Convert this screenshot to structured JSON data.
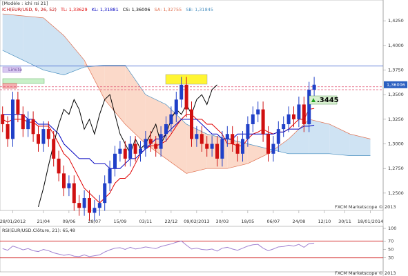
{
  "header": {
    "model": "[Modèle : ichi rsi 21]",
    "limit_label": "Limite"
  },
  "chart_data": [
    {
      "type": "candlestick",
      "legend": [
        {
          "text": "ICH(EUR/USD, 9, 26, 52)",
          "color": "#c00000"
        },
        {
          "text": "TL: 1,33629",
          "color": "#e00000"
        },
        {
          "text": "KL: 1,31881",
          "color": "#0000c0"
        },
        {
          "text": "CS: 1,36006",
          "color": "#000000"
        },
        {
          "text": "SA: 1,32755",
          "color": "#e07050"
        },
        {
          "text": "SB: 1,31845",
          "color": "#4a90c0"
        }
      ],
      "watermark": "FXCM Marketscope © 2013",
      "xlim": [
        -0.5,
        74.5
      ],
      "xticks": [
        {
          "value": 2,
          "label": "28/01/2012"
        },
        {
          "value": 8,
          "label": "21/04"
        },
        {
          "value": 13,
          "label": "09/06"
        },
        {
          "value": 18,
          "label": "28/07"
        },
        {
          "value": 23,
          "label": "15/09"
        },
        {
          "value": 28,
          "label": "03/11"
        },
        {
          "value": 33,
          "label": "22/12"
        },
        {
          "value": 38,
          "label": "09/02/2013"
        },
        {
          "value": 43,
          "label": "30/03"
        },
        {
          "value": 48,
          "label": "18/05"
        },
        {
          "value": 53,
          "label": "06/07"
        },
        {
          "value": 58,
          "label": "24/08"
        },
        {
          "value": 63,
          "label": "12/10"
        },
        {
          "value": 67,
          "label": "30/11"
        },
        {
          "value": 72,
          "label": "18/01/2014"
        }
      ],
      "ylim": [
        1.2324,
        1.4461
      ],
      "yticks": [
        {
          "value": 1.425,
          "label": "1,4250"
        },
        {
          "value": 1.4,
          "label": "1,4000"
        },
        {
          "value": 1.375,
          "label": "1,3750"
        },
        {
          "value": 1.35,
          "label": "1,3500"
        },
        {
          "value": 1.325,
          "label": "1,3250"
        },
        {
          "value": 1.3,
          "label": "1,3000"
        },
        {
          "value": 1.275,
          "label": "1,2750"
        },
        {
          "value": 1.25,
          "label": "1,2500"
        }
      ],
      "up_color": "#2040c8",
      "down_color": "#d01010",
      "candles": [
        [
          1.33,
          1.338,
          1.312,
          1.32
        ],
        [
          1.32,
          1.328,
          1.297,
          1.305
        ],
        [
          1.305,
          1.353,
          1.297,
          1.345
        ],
        [
          1.345,
          1.353,
          1.322,
          1.33
        ],
        [
          1.33,
          1.338,
          1.307,
          1.315
        ],
        [
          1.315,
          1.333,
          1.307,
          1.325
        ],
        [
          1.325,
          1.333,
          1.302,
          1.31
        ],
        [
          1.31,
          1.318,
          1.292,
          1.3
        ],
        [
          1.3,
          1.323,
          1.292,
          1.315
        ],
        [
          1.315,
          1.323,
          1.297,
          1.305
        ],
        [
          1.305,
          1.313,
          1.277,
          1.285
        ],
        [
          1.285,
          1.293,
          1.262,
          1.27
        ],
        [
          1.27,
          1.278,
          1.247,
          1.255
        ],
        [
          1.255,
          1.268,
          1.247,
          1.26
        ],
        [
          1.26,
          1.268,
          1.232,
          1.24
        ],
        [
          1.24,
          1.248,
          1.227,
          1.235
        ],
        [
          1.235,
          1.253,
          1.227,
          1.245
        ],
        [
          1.245,
          1.253,
          1.222,
          1.23
        ],
        [
          1.23,
          1.243,
          1.222,
          1.235
        ],
        [
          1.235,
          1.248,
          1.227,
          1.24
        ],
        [
          1.24,
          1.268,
          1.232,
          1.26
        ],
        [
          1.26,
          1.283,
          1.252,
          1.275
        ],
        [
          1.275,
          1.298,
          1.267,
          1.29
        ],
        [
          1.29,
          1.303,
          1.282,
          1.295
        ],
        [
          1.295,
          1.303,
          1.277,
          1.285
        ],
        [
          1.285,
          1.308,
          1.277,
          1.3
        ],
        [
          1.3,
          1.308,
          1.282,
          1.29
        ],
        [
          1.29,
          1.303,
          1.282,
          1.295
        ],
        [
          1.295,
          1.313,
          1.287,
          1.305
        ],
        [
          1.305,
          1.313,
          1.292,
          1.3
        ],
        [
          1.3,
          1.308,
          1.287,
          1.295
        ],
        [
          1.295,
          1.318,
          1.287,
          1.31
        ],
        [
          1.31,
          1.328,
          1.302,
          1.32
        ],
        [
          1.32,
          1.338,
          1.312,
          1.33
        ],
        [
          1.33,
          1.353,
          1.322,
          1.345
        ],
        [
          1.345,
          1.368,
          1.337,
          1.36
        ],
        [
          1.36,
          1.368,
          1.327,
          1.335
        ],
        [
          1.335,
          1.343,
          1.297,
          1.305
        ],
        [
          1.305,
          1.318,
          1.297,
          1.31
        ],
        [
          1.31,
          1.318,
          1.292,
          1.3
        ],
        [
          1.3,
          1.308,
          1.287,
          1.295
        ],
        [
          1.295,
          1.308,
          1.287,
          1.3
        ],
        [
          1.3,
          1.308,
          1.277,
          1.285
        ],
        [
          1.285,
          1.313,
          1.277,
          1.305
        ],
        [
          1.305,
          1.318,
          1.297,
          1.31
        ],
        [
          1.31,
          1.318,
          1.292,
          1.3
        ],
        [
          1.3,
          1.308,
          1.282,
          1.29
        ],
        [
          1.29,
          1.313,
          1.282,
          1.305
        ],
        [
          1.305,
          1.328,
          1.297,
          1.32
        ],
        [
          1.32,
          1.338,
          1.312,
          1.33
        ],
        [
          1.33,
          1.343,
          1.322,
          1.335
        ],
        [
          1.335,
          1.343,
          1.302,
          1.31
        ],
        [
          1.31,
          1.318,
          1.282,
          1.29
        ],
        [
          1.29,
          1.308,
          1.282,
          1.3
        ],
        [
          1.3,
          1.323,
          1.292,
          1.315
        ],
        [
          1.315,
          1.328,
          1.307,
          1.32
        ],
        [
          1.32,
          1.338,
          1.312,
          1.33
        ],
        [
          1.33,
          1.338,
          1.317,
          1.325
        ],
        [
          1.325,
          1.348,
          1.317,
          1.34
        ],
        [
          1.34,
          1.348,
          1.312,
          1.32
        ],
        [
          1.32,
          1.363,
          1.312,
          1.355
        ],
        [
          1.355,
          1.368,
          1.347,
          1.3601
        ]
      ],
      "lines": [
        {
          "color": "#e00000",
          "values": [
            1.325,
            1.322,
            1.325,
            1.325,
            1.325,
            1.322,
            1.322,
            1.318,
            1.318,
            1.318,
            1.31,
            1.3,
            1.29,
            1.285,
            1.275,
            1.265,
            1.255,
            1.25,
            1.245,
            1.24,
            1.245,
            1.25,
            1.26,
            1.265,
            1.265,
            1.27,
            1.28,
            1.29,
            1.295,
            1.298,
            1.298,
            1.3,
            1.303,
            1.31,
            1.318,
            1.325,
            1.33,
            1.33,
            1.325,
            1.325,
            1.32,
            1.32,
            1.315,
            1.31,
            1.3,
            1.3,
            1.298,
            1.298,
            1.305,
            1.31,
            1.312,
            1.315,
            1.312,
            1.31,
            1.312,
            1.312,
            1.315,
            1.32,
            1.325,
            1.325,
            1.335,
            1.336
          ]
        },
        {
          "color": "#0000c0",
          "values": [
            1.33,
            1.33,
            1.33,
            1.33,
            1.33,
            1.325,
            1.325,
            1.32,
            1.32,
            1.32,
            1.315,
            1.31,
            1.3,
            1.295,
            1.29,
            1.285,
            1.285,
            1.285,
            1.28,
            1.28,
            1.28,
            1.275,
            1.275,
            1.275,
            1.28,
            1.285,
            1.285,
            1.29,
            1.295,
            1.3,
            1.305,
            1.305,
            1.31,
            1.315,
            1.32,
            1.325,
            1.325,
            1.325,
            1.325,
            1.32,
            1.315,
            1.31,
            1.31,
            1.305,
            1.305,
            1.305,
            1.31,
            1.31,
            1.31,
            1.31,
            1.31,
            1.31,
            1.31,
            1.31,
            1.312,
            1.312,
            1.315,
            1.315,
            1.315,
            1.318,
            1.318,
            1.319
          ]
        }
      ],
      "chikou": {
        "color": "#000000",
        "x": [
          7,
          8,
          9,
          10,
          11,
          12,
          13,
          14,
          15,
          16,
          17,
          18,
          19,
          20,
          21,
          22,
          23,
          24,
          25,
          26,
          27,
          28,
          29,
          30,
          31,
          32,
          33,
          34,
          35,
          36,
          37,
          38,
          39,
          40,
          41,
          42
        ],
        "values": [
          1.236,
          1.255,
          1.278,
          1.3,
          1.32,
          1.335,
          1.33,
          1.345,
          1.335,
          1.315,
          1.325,
          1.31,
          1.33,
          1.345,
          1.35,
          1.33,
          1.31,
          1.3,
          1.29,
          1.305,
          1.295,
          1.3,
          1.31,
          1.32,
          1.3,
          1.31,
          1.325,
          1.335,
          1.33,
          1.34,
          1.33,
          1.345,
          1.35,
          1.34,
          1.355,
          1.36
        ]
      },
      "cloud": {
        "bull_color": "#cfe3f3",
        "bear_color": "#fbd9c9",
        "edge_a": "#e07050",
        "edge_b": "#4a90c0",
        "x": [
          0,
          4,
          8,
          12,
          16,
          20,
          24,
          28,
          32,
          36,
          40,
          44,
          48,
          52,
          56,
          60,
          64,
          68,
          72
        ],
        "span_a": [
          1.432,
          1.43,
          1.428,
          1.41,
          1.385,
          1.345,
          1.32,
          1.3,
          1.285,
          1.27,
          1.275,
          1.275,
          1.28,
          1.29,
          1.305,
          1.325,
          1.32,
          1.31,
          1.305
        ],
        "span_b": [
          1.395,
          1.385,
          1.375,
          1.37,
          1.378,
          1.38,
          1.38,
          1.35,
          1.34,
          1.32,
          1.31,
          1.305,
          1.3,
          1.295,
          1.29,
          1.29,
          1.29,
          1.288,
          1.288
        ]
      },
      "levels": [
        {
          "value": 1.379,
          "color": "#3a5fcd",
          "dash": false
        },
        {
          "value": 1.358,
          "color": "#e05070",
          "dash": true
        },
        {
          "value": 1.355,
          "color": "#e05070",
          "dash": true
        }
      ],
      "price_label": {
        "value": 1.36006,
        "label": "1,36006"
      },
      "target_label": {
        "value": 1.3445,
        "label": ".3445"
      }
    },
    {
      "type": "rsi",
      "title": "RSI(EUR/USD.Clôture, 21): 65,48",
      "watermark": "FXCM Marketscope © 2013",
      "color": "#a080d0",
      "ylim": [
        0,
        100
      ],
      "yticks": [
        100,
        70,
        50,
        30
      ],
      "levels": [
        70,
        30
      ],
      "values": [
        52,
        48,
        58,
        54,
        49,
        52,
        47,
        45,
        50,
        47,
        42,
        39,
        36,
        38,
        34,
        33,
        37,
        33,
        35,
        37,
        44,
        49,
        53,
        54,
        50,
        55,
        51,
        53,
        56,
        54,
        52,
        57,
        60,
        63,
        67,
        70,
        60,
        51,
        53,
        50,
        49,
        51,
        46,
        53,
        55,
        51,
        48,
        53,
        58,
        61,
        62,
        53,
        47,
        51,
        56,
        57,
        60,
        58,
        62,
        55,
        64,
        65
      ]
    }
  ]
}
